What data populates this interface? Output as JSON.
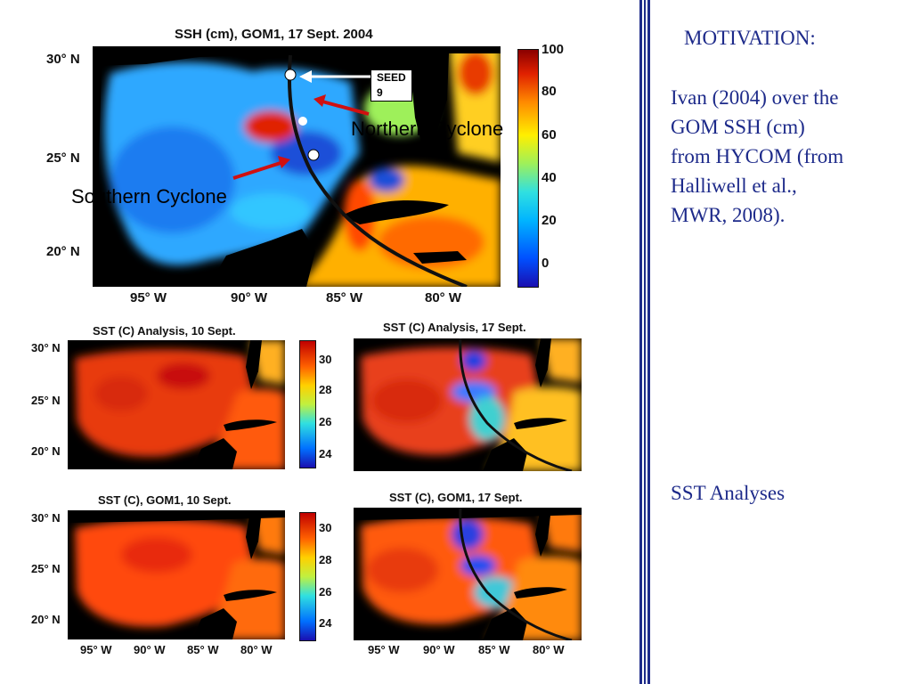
{
  "ssh_figure": {
    "title": "SSH (cm), GOM1, 17 Sept. 2004",
    "lat_labels": [
      "30° N",
      "25° N",
      "20° N"
    ],
    "lon_labels": [
      "95° W",
      "90° W",
      "85° W",
      "80° W"
    ],
    "colorbar_labels": [
      "100",
      "80",
      "60",
      "40",
      "20",
      "0"
    ],
    "annotations": {
      "seed": "SEED 9",
      "northern": "Northern Cyclone",
      "southern": "Southern Cyclone"
    }
  },
  "sst_analysis_10": {
    "title": "SST (C) Analysis, 10 Sept.",
    "lat_labels": [
      "30° N",
      "25° N",
      "20° N"
    ],
    "colorbar_labels": [
      "30",
      "28",
      "26",
      "24"
    ]
  },
  "sst_analysis_17": {
    "title": "SST (C) Analysis, 17 Sept."
  },
  "sst_gom1_10": {
    "title": "SST (C), GOM1, 10 Sept.",
    "lat_labels": [
      "30° N",
      "25° N",
      "20° N"
    ],
    "lon_labels": [
      "95° W",
      "90° W",
      "85° W",
      "80° W"
    ],
    "colorbar_labels": [
      "30",
      "28",
      "26",
      "24"
    ]
  },
  "sst_gom1_17": {
    "title": "SST (C), GOM1, 17 Sept.",
    "lon_labels": [
      "95° W",
      "90° W",
      "85° W",
      "80° W"
    ]
  },
  "sidebar": {
    "heading": "MOTIVATION:",
    "body_lines": [
      "Ivan (2004) over the",
      "GOM SSH (cm)",
      "from HYCOM (from",
      "Halliwell et al.,",
      "MWR, 2008)."
    ],
    "sst_label": "SST Analyses"
  },
  "colors": {
    "accent": "#1d2a8a"
  }
}
